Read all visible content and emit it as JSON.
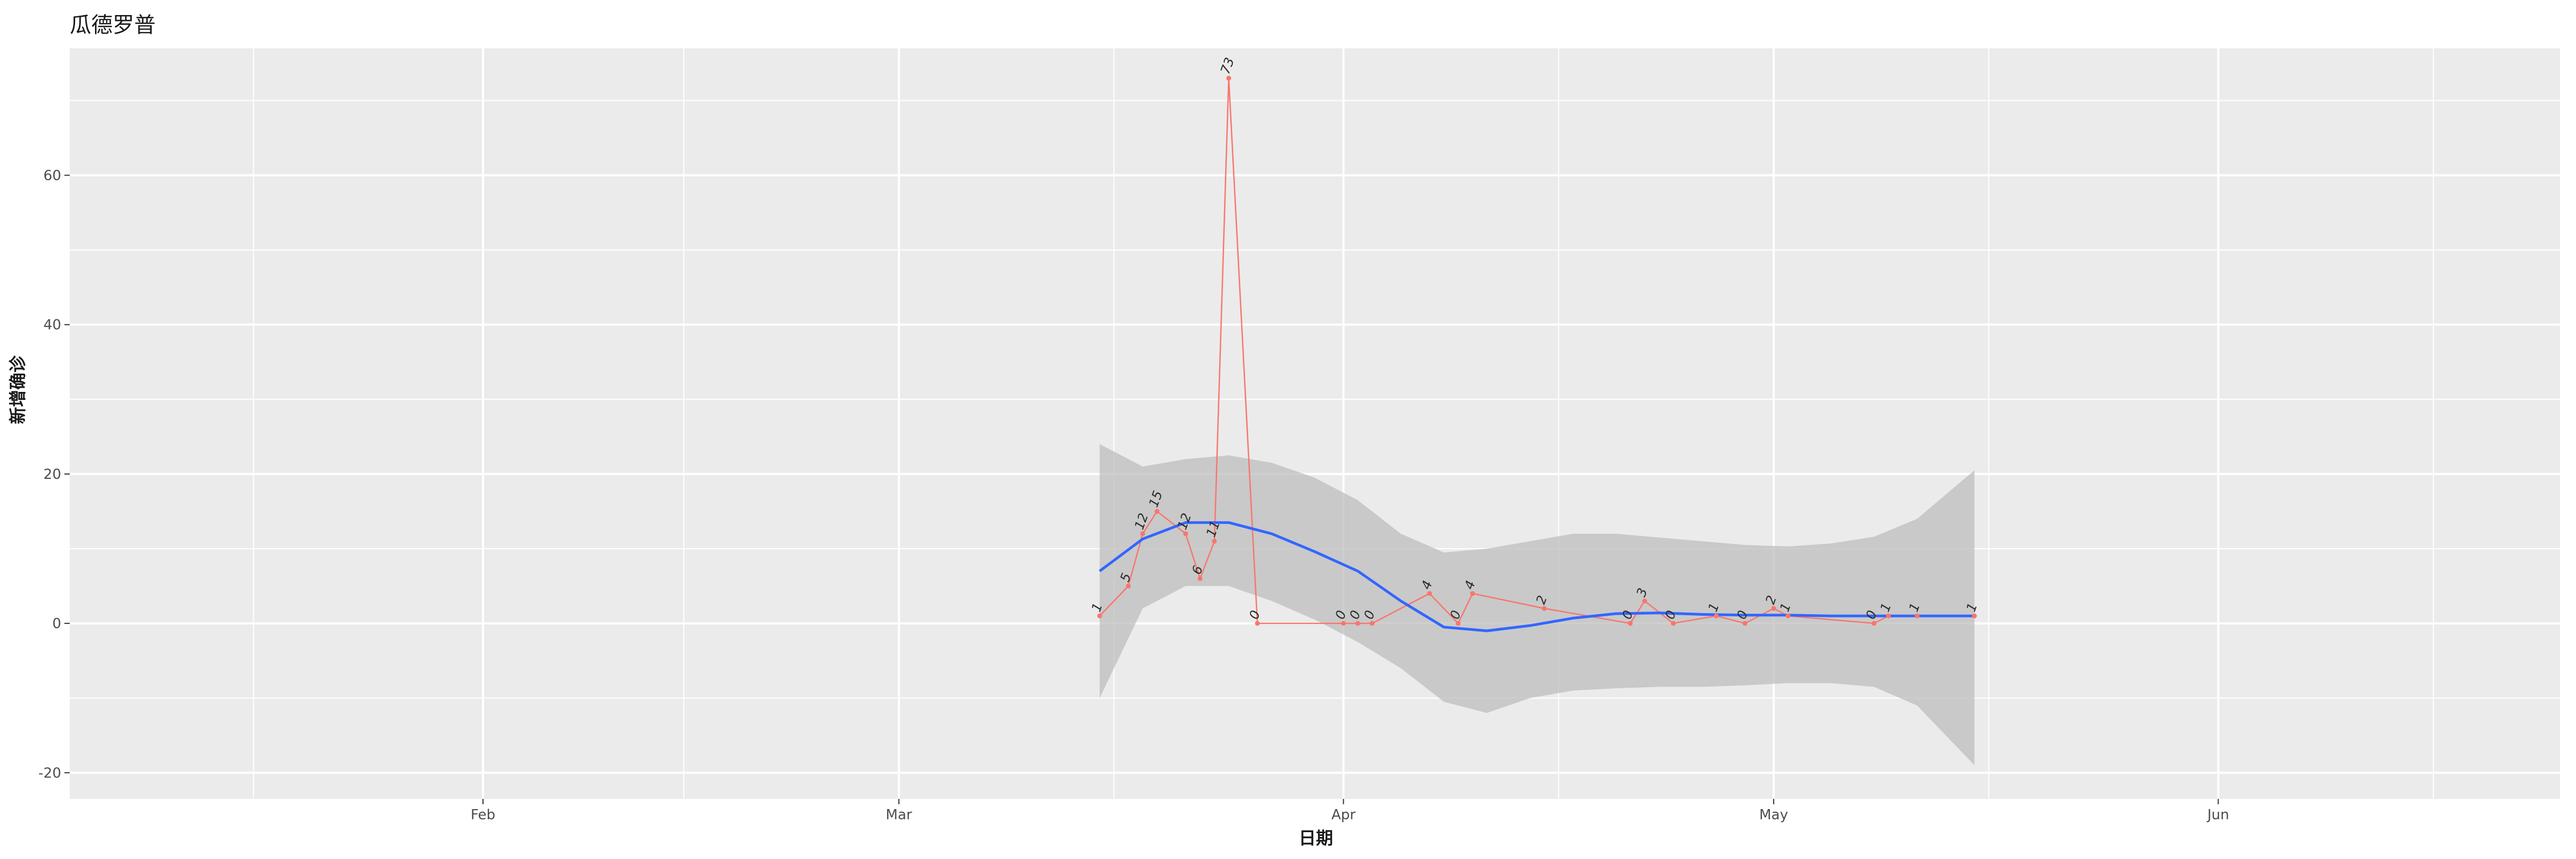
{
  "chart_data": {
    "type": "line",
    "title": "瓜德罗普",
    "xlabel": "日期",
    "ylabel": "新增确诊",
    "x_ticks": [
      "Feb",
      "Mar",
      "Apr",
      "May",
      "Jun"
    ],
    "y_ticks": [
      "-20",
      "0",
      "20",
      "40",
      "60"
    ],
    "ylim": [
      -23.5,
      77
    ],
    "grid": true,
    "series": [
      {
        "values": [
          {
            "x": "2020-03-15",
            "y": 1
          },
          {
            "x": "2020-03-17",
            "y": 5
          },
          {
            "x": "2020-03-18",
            "y": 12
          },
          {
            "x": "2020-03-19",
            "y": 15
          },
          {
            "x": "2020-03-21",
            "y": 12
          },
          {
            "x": "2020-03-22",
            "y": 6
          },
          {
            "x": "2020-03-23",
            "y": 11
          },
          {
            "x": "2020-03-24",
            "y": 73
          },
          {
            "x": "2020-03-26",
            "y": 0
          },
          {
            "x": "2020-04-01",
            "y": 0
          },
          {
            "x": "2020-04-02",
            "y": 0
          },
          {
            "x": "2020-04-03",
            "y": 0
          },
          {
            "x": "2020-04-07",
            "y": 4
          },
          {
            "x": "2020-04-09",
            "y": 0
          },
          {
            "x": "2020-04-10",
            "y": 4
          },
          {
            "x": "2020-04-15",
            "y": 2
          },
          {
            "x": "2020-04-21",
            "y": 0
          },
          {
            "x": "2020-04-22",
            "y": 3
          },
          {
            "x": "2020-04-24",
            "y": 0
          },
          {
            "x": "2020-04-27",
            "y": 1
          },
          {
            "x": "2020-04-29",
            "y": 0
          },
          {
            "x": "2020-05-01",
            "y": 2
          },
          {
            "x": "2020-05-02",
            "y": 1
          },
          {
            "x": "2020-05-08",
            "y": 0
          },
          {
            "x": "2020-05-09",
            "y": 1
          },
          {
            "x": "2020-05-11",
            "y": 1
          },
          {
            "x": "2020-05-15",
            "y": 1
          }
        ]
      }
    ],
    "smooth": {
      "x": [
        "2020-03-15",
        "2020-03-18",
        "2020-03-21",
        "2020-03-24",
        "2020-03-27",
        "2020-03-30",
        "2020-04-02",
        "2020-04-05",
        "2020-04-08",
        "2020-04-11",
        "2020-04-14",
        "2020-04-17",
        "2020-04-20",
        "2020-04-23",
        "2020-04-26",
        "2020-04-29",
        "2020-05-02",
        "2020-05-05",
        "2020-05-08",
        "2020-05-11",
        "2020-05-15"
      ],
      "fit": [
        7,
        11.3,
        13.5,
        13.5,
        12,
        9.6,
        7,
        3,
        -0.5,
        -1,
        -0.3,
        0.7,
        1.3,
        1.4,
        1.2,
        1.1,
        1.1,
        1,
        1,
        1,
        1
      ],
      "lower": [
        -10,
        2,
        5,
        5,
        3,
        0.5,
        -2.5,
        -6,
        -10.5,
        -12,
        -10,
        -9,
        -8.7,
        -8.5,
        -8.5,
        -8.3,
        -8,
        -8,
        -8.5,
        -11,
        -19
      ],
      "upper": [
        24,
        21,
        22,
        22.5,
        21.5,
        19.5,
        16.5,
        12,
        9.5,
        10,
        11,
        12,
        12,
        11.5,
        11,
        10.5,
        10.3,
        10.7,
        11.6,
        14,
        20.5
      ]
    },
    "colors": {
      "panel": "#ebebeb",
      "grid": "#ffffff",
      "series": "#f8766d",
      "smooth": "#3366ff",
      "ribbon": "#bdbdbd"
    }
  }
}
